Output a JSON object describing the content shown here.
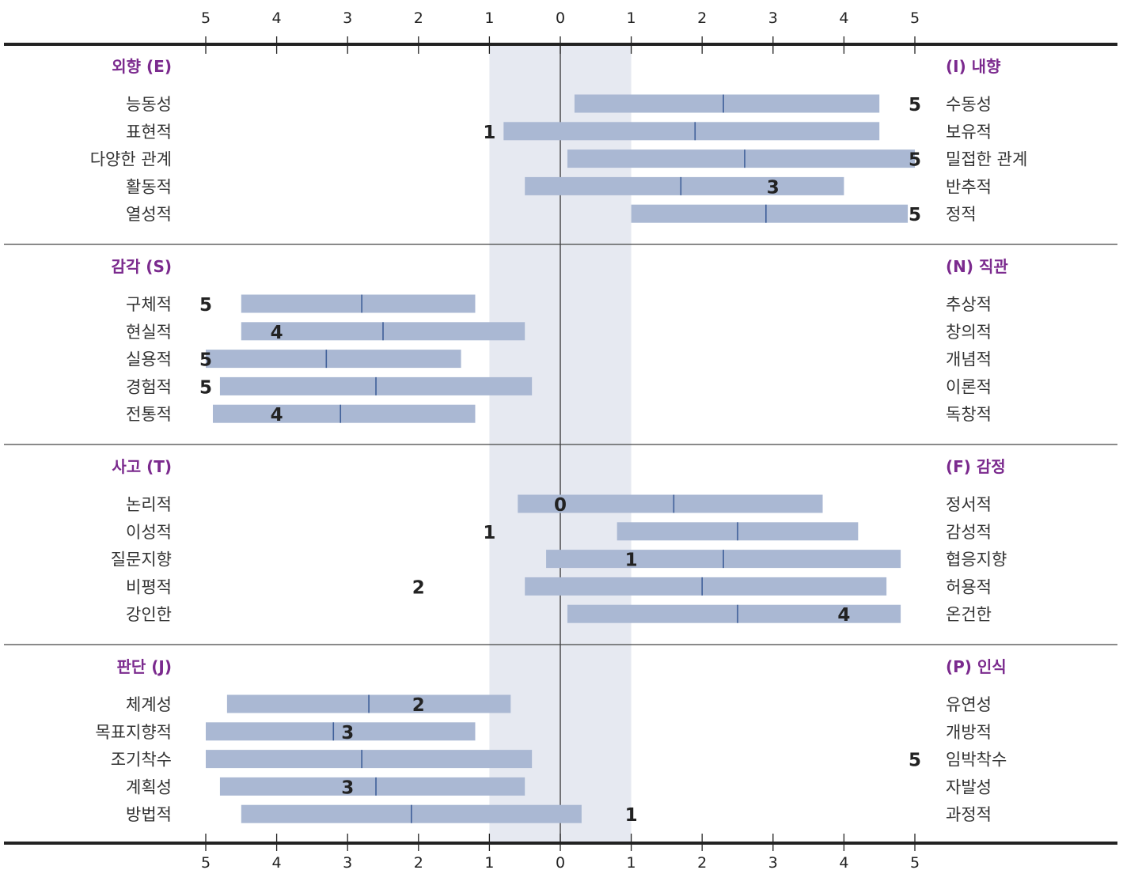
{
  "chart_data": {
    "type": "bar",
    "axis": {
      "ticks": [
        5,
        4,
        3,
        2,
        1,
        0,
        1,
        2,
        3,
        4,
        5
      ],
      "range": [
        -5,
        5
      ],
      "shaded_band": [
        -1,
        1
      ]
    },
    "sections": [
      {
        "left_title": "외향 (E)",
        "right_title": "(I) 내향",
        "rows": [
          {
            "left": "능동성",
            "right": "수동성",
            "range": [
              0.2,
              4.5
            ],
            "mid": 2.3,
            "score": "5",
            "score_at": 5
          },
          {
            "left": "표현적",
            "right": "보유적",
            "range": [
              -0.8,
              4.5
            ],
            "mid": 1.9,
            "score": "1",
            "score_at": -1
          },
          {
            "left": "다양한 관계",
            "right": "밀접한 관계",
            "range": [
              0.1,
              5.0
            ],
            "mid": 2.6,
            "score": "5",
            "score_at": 5
          },
          {
            "left": "활동적",
            "right": "반추적",
            "range": [
              -0.5,
              4.0
            ],
            "mid": 1.7,
            "score": "3",
            "score_at": 3
          },
          {
            "left": "열성적",
            "right": "정적",
            "range": [
              1.0,
              4.9
            ],
            "mid": 2.9,
            "score": "5",
            "score_at": 5
          }
        ]
      },
      {
        "left_title": "감각 (S)",
        "right_title": "(N) 직관",
        "rows": [
          {
            "left": "구체적",
            "right": "추상적",
            "range": [
              -4.5,
              -1.2
            ],
            "mid": -2.8,
            "score": "5",
            "score_at": -5
          },
          {
            "left": "현실적",
            "right": "창의적",
            "range": [
              -4.5,
              -0.5
            ],
            "mid": -2.5,
            "score": "4",
            "score_at": -4
          },
          {
            "left": "실용적",
            "right": "개념적",
            "range": [
              -5.0,
              -1.4
            ],
            "mid": -3.3,
            "score": "5",
            "score_at": -5
          },
          {
            "left": "경험적",
            "right": "이론적",
            "range": [
              -4.8,
              -0.4
            ],
            "mid": -2.6,
            "score": "5",
            "score_at": -5
          },
          {
            "left": "전통적",
            "right": "독창적",
            "range": [
              -4.9,
              -1.2
            ],
            "mid": -3.1,
            "score": "4",
            "score_at": -4
          }
        ]
      },
      {
        "left_title": "사고 (T)",
        "right_title": "(F) 감정",
        "rows": [
          {
            "left": "논리적",
            "right": "정서적",
            "range": [
              -0.6,
              3.7
            ],
            "mid": 1.6,
            "score": "0",
            "score_at": 0
          },
          {
            "left": "이성적",
            "right": "감성적",
            "range": [
              0.8,
              4.2
            ],
            "mid": 2.5,
            "score": "1",
            "score_at": -1
          },
          {
            "left": "질문지향",
            "right": "협응지향",
            "range": [
              -0.2,
              4.8
            ],
            "mid": 2.3,
            "score": "1",
            "score_at": 1
          },
          {
            "left": "비평적",
            "right": "허용적",
            "range": [
              -0.5,
              4.6
            ],
            "mid": 2.0,
            "score": "2",
            "score_at": -2
          },
          {
            "left": "강인한",
            "right": "온건한",
            "range": [
              0.1,
              4.8
            ],
            "mid": 2.5,
            "score": "4",
            "score_at": 4
          }
        ]
      },
      {
        "left_title": "판단 (J)",
        "right_title": "(P) 인식",
        "rows": [
          {
            "left": "체계성",
            "right": "유연성",
            "range": [
              -4.7,
              -0.7
            ],
            "mid": -2.7,
            "score": "2",
            "score_at": -2
          },
          {
            "left": "목표지향적",
            "right": "개방적",
            "range": [
              -5.0,
              -1.2
            ],
            "mid": -3.2,
            "score": "3",
            "score_at": -3
          },
          {
            "left": "조기착수",
            "right": "임박착수",
            "range": [
              -5.0,
              -0.4
            ],
            "mid": -2.8,
            "score": "5",
            "score_at": 5
          },
          {
            "left": "계획성",
            "right": "자발성",
            "range": [
              -4.8,
              -0.5
            ],
            "mid": -2.6,
            "score": "3",
            "score_at": -3
          },
          {
            "left": "방법적",
            "right": "과정적",
            "range": [
              -4.5,
              0.3
            ],
            "mid": -2.1,
            "score": "1",
            "score_at": 1
          }
        ]
      }
    ]
  },
  "colors": {
    "bar_fill": "#aab8d3",
    "mid_tick": "#3f5f99",
    "band_fill": "#e6e9f1",
    "section_title": "#7b2a8e",
    "axis_line": "#222222"
  }
}
